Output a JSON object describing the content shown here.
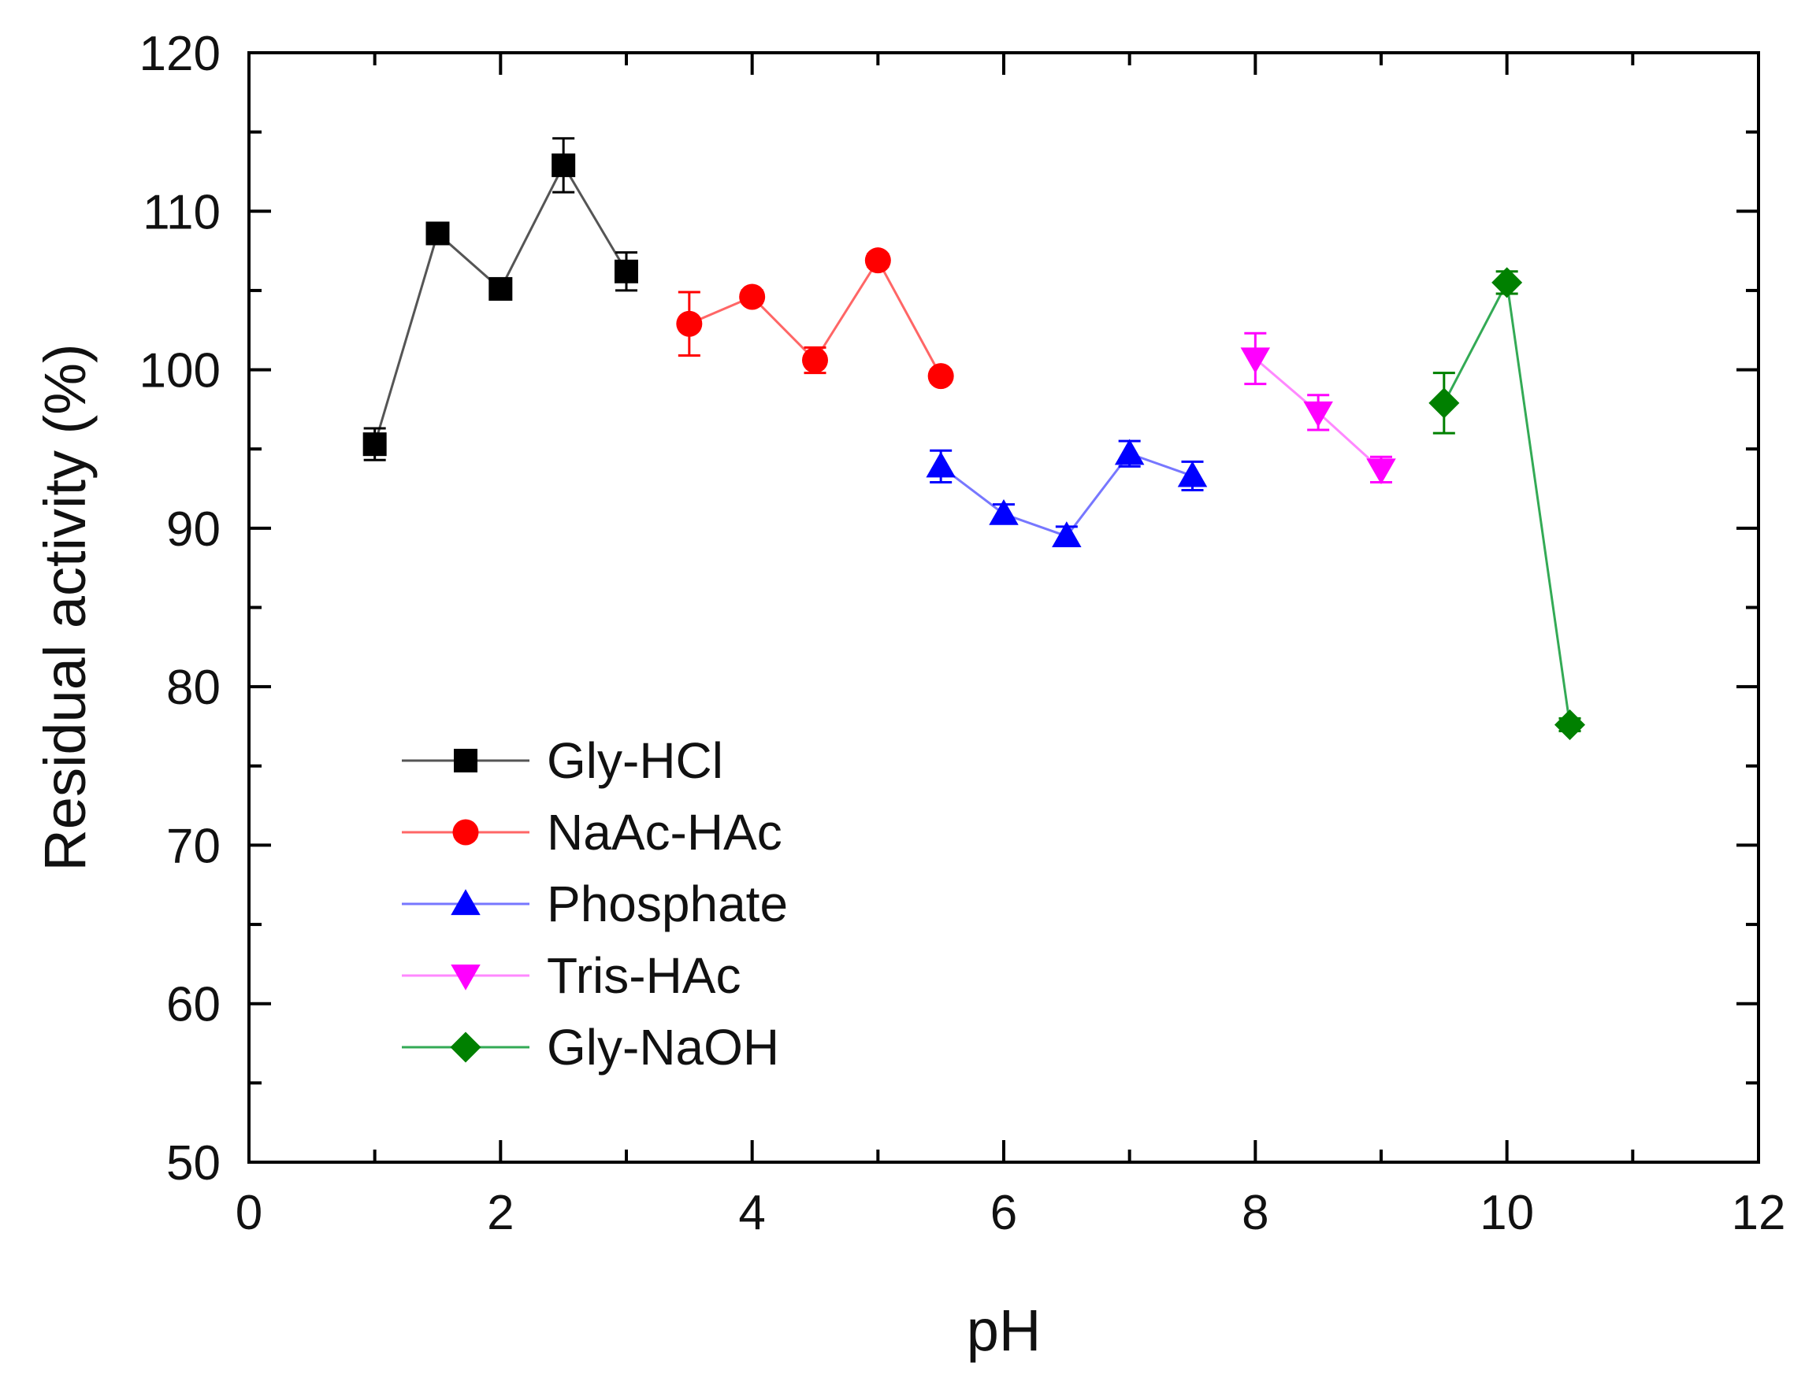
{
  "chart_data": {
    "type": "line",
    "title": "",
    "xlabel": "pH",
    "ylabel": "Residual activity (%)",
    "xlim": [
      0,
      12
    ],
    "ylim": [
      50,
      120
    ],
    "x_ticks": [
      0,
      2,
      4,
      6,
      8,
      10,
      12
    ],
    "y_ticks": [
      50,
      60,
      70,
      80,
      90,
      100,
      110,
      120
    ],
    "x_tick_labels": [
      "0",
      "2",
      "4",
      "6",
      "8",
      "10",
      "12"
    ],
    "y_tick_labels": [
      "50",
      "60",
      "70",
      "80",
      "90",
      "100",
      "110",
      "120"
    ],
    "legend_position": "middle-left",
    "grid": false,
    "series": [
      {
        "name": "Gly-HCl",
        "color": "#000000",
        "line_color": "#555555",
        "marker": "square",
        "x": [
          1.0,
          1.5,
          2.0,
          2.5,
          3.0
        ],
        "y": [
          95.3,
          108.6,
          105.1,
          112.9,
          106.2
        ],
        "err": [
          1.0,
          0.4,
          0.5,
          1.7,
          1.2
        ]
      },
      {
        "name": "NaAc-HAc",
        "color": "#ff0000",
        "line_color": "#ff6666",
        "marker": "circle",
        "x": [
          3.5,
          4.0,
          4.5,
          5.0,
          5.5
        ],
        "y": [
          102.9,
          104.6,
          100.6,
          106.9,
          99.6
        ],
        "err": [
          2.0,
          0.4,
          0.8,
          0.4,
          0.4
        ]
      },
      {
        "name": "Phosphate",
        "color": "#0000ff",
        "line_color": "#7777ff",
        "marker": "triangle-up",
        "x": [
          5.5,
          6.0,
          6.5,
          7.0,
          7.5
        ],
        "y": [
          93.9,
          90.9,
          89.5,
          94.7,
          93.3
        ],
        "err": [
          1.0,
          0.6,
          0.6,
          0.8,
          0.9
        ]
      },
      {
        "name": "Tris-HAc",
        "color": "#ff00ff",
        "line_color": "#ff88ff",
        "marker": "triangle-down",
        "x": [
          8.0,
          8.5,
          9.0
        ],
        "y": [
          100.7,
          97.3,
          93.7
        ],
        "err": [
          1.6,
          1.1,
          0.8
        ]
      },
      {
        "name": "Gly-NaOH",
        "color": "#008000",
        "line_color": "#33aa55",
        "marker": "diamond",
        "x": [
          9.5,
          10.0,
          10.5
        ],
        "y": [
          97.9,
          105.5,
          77.6
        ],
        "err": [
          1.9,
          0.7,
          0.4
        ]
      }
    ]
  }
}
